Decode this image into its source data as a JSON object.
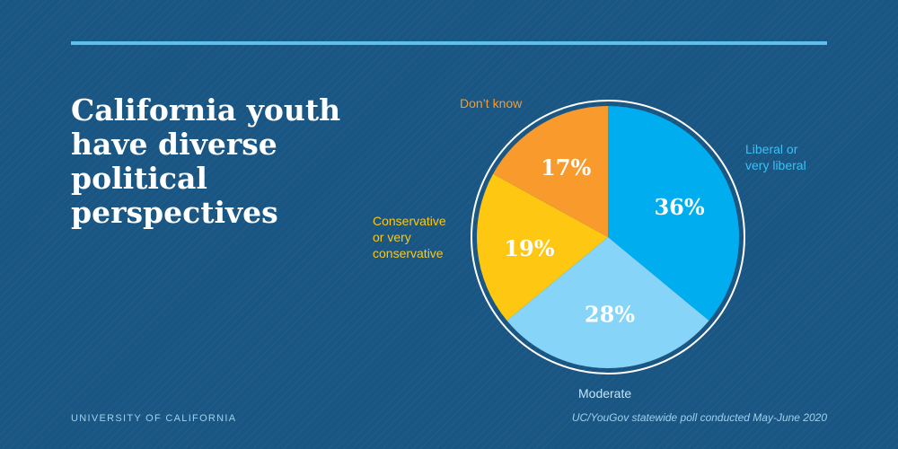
{
  "headline": [
    "California youth",
    "have diverse",
    "political",
    "perspectives"
  ],
  "chart_data": {
    "type": "pie",
    "title": "California youth have diverse political perspectives",
    "slices": [
      {
        "name": "Liberal or very liberal",
        "label_lines": [
          "Liberal or",
          "very liberal"
        ],
        "value": 36,
        "value_label": "36%",
        "color": "#00aeef",
        "label_color": "#3cc0f2",
        "label_position": "right"
      },
      {
        "name": "Moderate",
        "label_lines": [
          "Moderate"
        ],
        "value": 28,
        "value_label": "28%",
        "color": "#86d4f7",
        "label_color": "#bfe6fa",
        "label_position": "bottom"
      },
      {
        "name": "Conservative or very conservative",
        "label_lines": [
          "Conservative",
          "or very",
          "conservative"
        ],
        "value": 19,
        "value_label": "19%",
        "color": "#fdc712",
        "label_color": "#fdc712",
        "label_position": "left"
      },
      {
        "name": "Don't know",
        "label_lines": [
          "Don’t know"
        ],
        "value": 17,
        "value_label": "17%",
        "color": "#f89a2c",
        "label_color": "#f89a2c",
        "label_position": "top-left"
      }
    ]
  },
  "footer": {
    "organization": "UNIVERSITY OF CALIFORNIA",
    "source": "UC/YouGov statewide poll conducted May-June 2020"
  },
  "colors": {
    "background": "#1a5683",
    "rule": "#5cc0ef",
    "value_text": "#ffffff"
  }
}
